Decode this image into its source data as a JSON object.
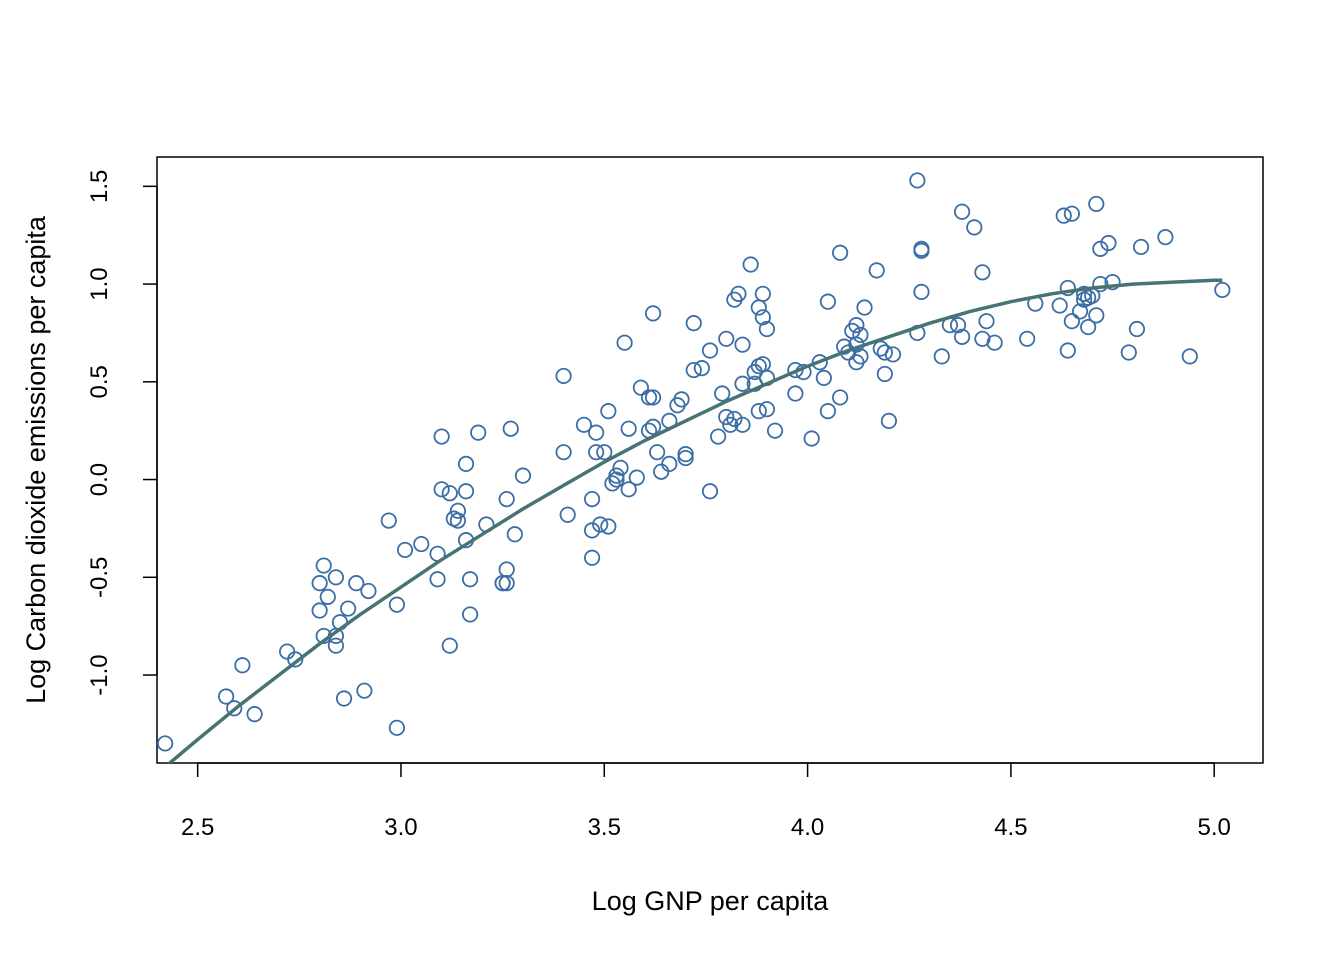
{
  "chart_data": {
    "type": "scatter",
    "title": "",
    "xlabel": "Log GNP per capita",
    "ylabel": "Log Carbon dioxide emissions per capita",
    "xlim": [
      2.4,
      5.12
    ],
    "ylim": [
      -1.45,
      1.65
    ],
    "x_ticks": [
      {
        "value": 2.5,
        "label": "2.5"
      },
      {
        "value": 3.0,
        "label": "3.0"
      },
      {
        "value": 3.5,
        "label": "3.5"
      },
      {
        "value": 4.0,
        "label": "4.0"
      },
      {
        "value": 4.5,
        "label": "4.5"
      },
      {
        "value": 5.0,
        "label": "5.0"
      }
    ],
    "y_ticks": [
      {
        "value": -1.0,
        "label": "-1.0"
      },
      {
        "value": -0.5,
        "label": "-0.5"
      },
      {
        "value": 0.0,
        "label": "0.0"
      },
      {
        "value": 0.5,
        "label": "0.5"
      },
      {
        "value": 1.0,
        "label": "1.0"
      },
      {
        "value": 1.5,
        "label": "1.5"
      }
    ],
    "grid": false,
    "point_color": "#3b6ea5",
    "curve_color": "#467373",
    "points": [
      [
        2.42,
        -1.35
      ],
      [
        2.57,
        -1.11
      ],
      [
        2.59,
        -1.17
      ],
      [
        2.61,
        -0.95
      ],
      [
        2.64,
        -1.2
      ],
      [
        2.72,
        -0.88
      ],
      [
        2.74,
        -0.92
      ],
      [
        2.8,
        -0.53
      ],
      [
        2.8,
        -0.67
      ],
      [
        2.81,
        -0.44
      ],
      [
        2.81,
        -0.8
      ],
      [
        2.82,
        -0.6
      ],
      [
        2.84,
        -0.5
      ],
      [
        2.84,
        -0.8
      ],
      [
        2.84,
        -0.85
      ],
      [
        2.85,
        -0.73
      ],
      [
        2.86,
        -1.12
      ],
      [
        2.87,
        -0.66
      ],
      [
        2.89,
        -0.53
      ],
      [
        2.91,
        -1.08
      ],
      [
        2.92,
        -0.57
      ],
      [
        2.97,
        -0.21
      ],
      [
        2.99,
        -0.64
      ],
      [
        2.99,
        -1.27
      ],
      [
        3.01,
        -0.36
      ],
      [
        3.05,
        -0.33
      ],
      [
        3.09,
        -0.38
      ],
      [
        3.09,
        -0.51
      ],
      [
        3.1,
        0.22
      ],
      [
        3.1,
        -0.05
      ],
      [
        3.12,
        -0.85
      ],
      [
        3.12,
        -0.07
      ],
      [
        3.13,
        -0.2
      ],
      [
        3.14,
        -0.16
      ],
      [
        3.14,
        -0.21
      ],
      [
        3.16,
        0.08
      ],
      [
        3.16,
        -0.31
      ],
      [
        3.16,
        -0.06
      ],
      [
        3.17,
        -0.51
      ],
      [
        3.17,
        -0.69
      ],
      [
        3.19,
        0.24
      ],
      [
        3.21,
        -0.23
      ],
      [
        3.25,
        -0.53
      ],
      [
        3.25,
        -0.53
      ],
      [
        3.26,
        -0.46
      ],
      [
        3.26,
        -0.53
      ],
      [
        3.26,
        -0.1
      ],
      [
        3.27,
        0.26
      ],
      [
        3.28,
        -0.28
      ],
      [
        3.3,
        0.02
      ],
      [
        3.4,
        0.53
      ],
      [
        3.4,
        0.14
      ],
      [
        3.41,
        -0.18
      ],
      [
        3.45,
        0.28
      ],
      [
        3.47,
        -0.4
      ],
      [
        3.47,
        -0.1
      ],
      [
        3.47,
        -0.26
      ],
      [
        3.48,
        0.14
      ],
      [
        3.48,
        0.24
      ],
      [
        3.49,
        -0.23
      ],
      [
        3.5,
        0.14
      ],
      [
        3.51,
        0.35
      ],
      [
        3.51,
        -0.24
      ],
      [
        3.52,
        -0.02
      ],
      [
        3.53,
        0.0
      ],
      [
        3.53,
        0.02
      ],
      [
        3.54,
        0.06
      ],
      [
        3.55,
        0.7
      ],
      [
        3.56,
        0.26
      ],
      [
        3.56,
        -0.05
      ],
      [
        3.58,
        0.01
      ],
      [
        3.59,
        0.47
      ],
      [
        3.61,
        0.25
      ],
      [
        3.61,
        0.42
      ],
      [
        3.62,
        0.27
      ],
      [
        3.62,
        0.42
      ],
      [
        3.62,
        0.85
      ],
      [
        3.63,
        0.14
      ],
      [
        3.64,
        0.04
      ],
      [
        3.66,
        0.3
      ],
      [
        3.66,
        0.08
      ],
      [
        3.68,
        0.38
      ],
      [
        3.69,
        0.41
      ],
      [
        3.7,
        0.13
      ],
      [
        3.7,
        0.11
      ],
      [
        3.72,
        0.56
      ],
      [
        3.72,
        0.8
      ],
      [
        3.74,
        0.57
      ],
      [
        3.76,
        0.66
      ],
      [
        3.76,
        -0.06
      ],
      [
        3.78,
        0.22
      ],
      [
        3.79,
        0.44
      ],
      [
        3.8,
        0.72
      ],
      [
        3.8,
        0.32
      ],
      [
        3.81,
        0.28
      ],
      [
        3.82,
        0.92
      ],
      [
        3.82,
        0.31
      ],
      [
        3.83,
        0.95
      ],
      [
        3.84,
        0.28
      ],
      [
        3.84,
        0.49
      ],
      [
        3.84,
        0.69
      ],
      [
        3.86,
        1.1
      ],
      [
        3.87,
        0.55
      ],
      [
        3.87,
        0.49
      ],
      [
        3.88,
        0.58
      ],
      [
        3.88,
        0.35
      ],
      [
        3.88,
        0.88
      ],
      [
        3.89,
        0.83
      ],
      [
        3.89,
        0.95
      ],
      [
        3.89,
        0.59
      ],
      [
        3.9,
        0.77
      ],
      [
        3.9,
        0.52
      ],
      [
        3.9,
        0.36
      ],
      [
        3.92,
        0.25
      ],
      [
        3.97,
        0.56
      ],
      [
        3.97,
        0.44
      ],
      [
        3.99,
        0.55
      ],
      [
        4.01,
        0.21
      ],
      [
        4.03,
        0.6
      ],
      [
        4.04,
        0.52
      ],
      [
        4.05,
        0.35
      ],
      [
        4.05,
        0.91
      ],
      [
        4.08,
        1.16
      ],
      [
        4.08,
        0.42
      ],
      [
        4.09,
        0.68
      ],
      [
        4.1,
        0.65
      ],
      [
        4.11,
        0.76
      ],
      [
        4.12,
        0.79
      ],
      [
        4.12,
        0.69
      ],
      [
        4.12,
        0.6
      ],
      [
        4.13,
        0.74
      ],
      [
        4.13,
        0.63
      ],
      [
        4.14,
        0.88
      ],
      [
        4.17,
        1.07
      ],
      [
        4.18,
        0.67
      ],
      [
        4.19,
        0.65
      ],
      [
        4.19,
        0.54
      ],
      [
        4.2,
        0.3
      ],
      [
        4.21,
        0.64
      ],
      [
        4.27,
        0.75
      ],
      [
        4.27,
        1.53
      ],
      [
        4.28,
        1.17
      ],
      [
        4.28,
        0.96
      ],
      [
        4.28,
        1.18
      ],
      [
        4.33,
        0.63
      ],
      [
        4.35,
        0.79
      ],
      [
        4.37,
        0.79
      ],
      [
        4.38,
        1.37
      ],
      [
        4.38,
        0.73
      ],
      [
        4.41,
        1.29
      ],
      [
        4.43,
        0.72
      ],
      [
        4.43,
        1.06
      ],
      [
        4.44,
        0.81
      ],
      [
        4.46,
        0.7
      ],
      [
        4.54,
        0.72
      ],
      [
        4.56,
        0.9
      ],
      [
        4.62,
        0.89
      ],
      [
        4.63,
        1.35
      ],
      [
        4.64,
        0.66
      ],
      [
        4.64,
        0.98
      ],
      [
        4.65,
        0.81
      ],
      [
        4.65,
        1.36
      ],
      [
        4.67,
        0.86
      ],
      [
        4.68,
        0.95
      ],
      [
        4.68,
        0.92
      ],
      [
        4.69,
        0.78
      ],
      [
        4.69,
        0.93
      ],
      [
        4.7,
        0.94
      ],
      [
        4.71,
        1.41
      ],
      [
        4.71,
        0.84
      ],
      [
        4.72,
        1.0
      ],
      [
        4.72,
        1.18
      ],
      [
        4.74,
        1.21
      ],
      [
        4.75,
        1.01
      ],
      [
        4.79,
        0.65
      ],
      [
        4.81,
        0.77
      ],
      [
        4.82,
        1.19
      ],
      [
        4.88,
        1.24
      ],
      [
        4.94,
        0.63
      ],
      [
        5.02,
        0.97
      ]
    ],
    "fit_curve": [
      [
        2.42,
        -1.47
      ],
      [
        2.5,
        -1.33
      ],
      [
        2.6,
        -1.16
      ],
      [
        2.7,
        -1.0
      ],
      [
        2.8,
        -0.84
      ],
      [
        2.9,
        -0.69
      ],
      [
        3.0,
        -0.55
      ],
      [
        3.1,
        -0.41
      ],
      [
        3.2,
        -0.28
      ],
      [
        3.3,
        -0.15
      ],
      [
        3.4,
        -0.03
      ],
      [
        3.5,
        0.09
      ],
      [
        3.6,
        0.2
      ],
      [
        3.7,
        0.3
      ],
      [
        3.8,
        0.4
      ],
      [
        3.9,
        0.49
      ],
      [
        4.0,
        0.58
      ],
      [
        4.1,
        0.66
      ],
      [
        4.2,
        0.73
      ],
      [
        4.3,
        0.8
      ],
      [
        4.4,
        0.86
      ],
      [
        4.5,
        0.91
      ],
      [
        4.6,
        0.95
      ],
      [
        4.7,
        0.98
      ],
      [
        4.8,
        1.0
      ],
      [
        4.9,
        1.01
      ],
      [
        5.0,
        1.02
      ],
      [
        5.02,
        1.02
      ]
    ]
  }
}
